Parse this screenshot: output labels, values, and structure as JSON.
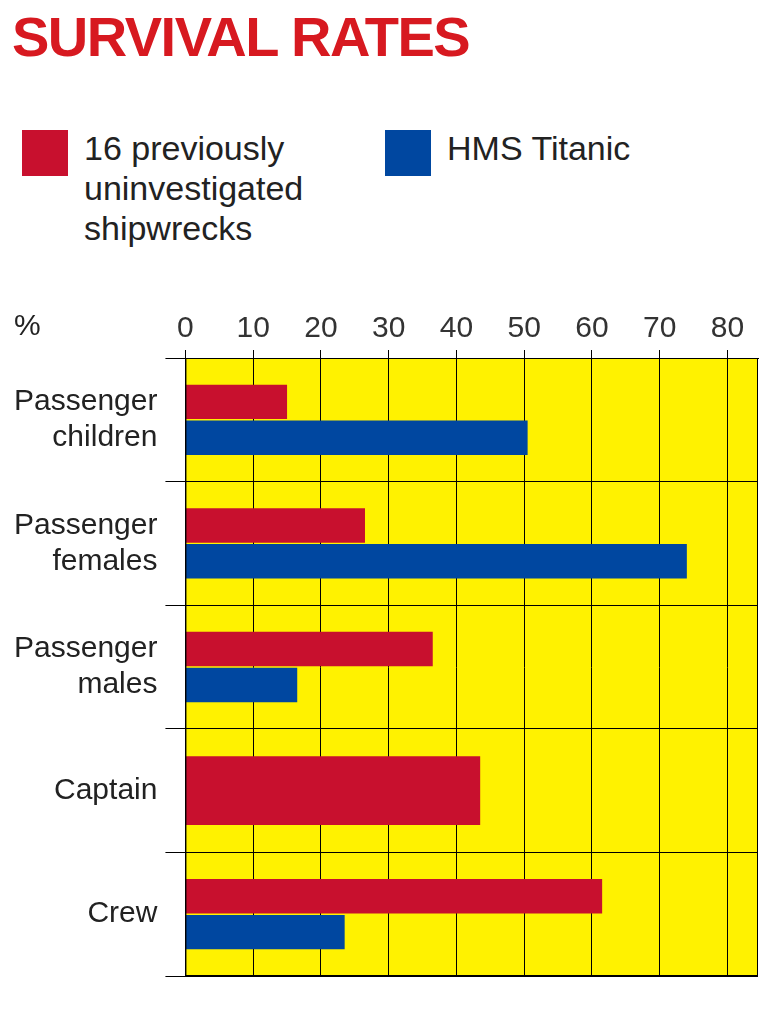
{
  "chart_data": {
    "type": "bar",
    "title": "SURVIVAL RATES",
    "orientation": "horizontal",
    "xlabel": "%",
    "categories": [
      "Passenger children",
      "Passenger females",
      "Passenger males",
      "Captain",
      "Crew"
    ],
    "series": [
      {
        "name": "16 previously uninvestigated shipwrecks",
        "color": "#c8102e",
        "values": [
          15,
          26.5,
          36.5,
          43.5,
          61.5
        ]
      },
      {
        "name": "HMS Titanic",
        "color": "#0047a0",
        "values": [
          50.5,
          74,
          16.5,
          null,
          23.5
        ]
      }
    ],
    "xlim": [
      0,
      84.5
    ],
    "xticks": [
      0,
      10,
      20,
      30,
      40,
      50,
      60,
      70,
      80
    ],
    "grid": true,
    "legend": "top-left"
  }
}
